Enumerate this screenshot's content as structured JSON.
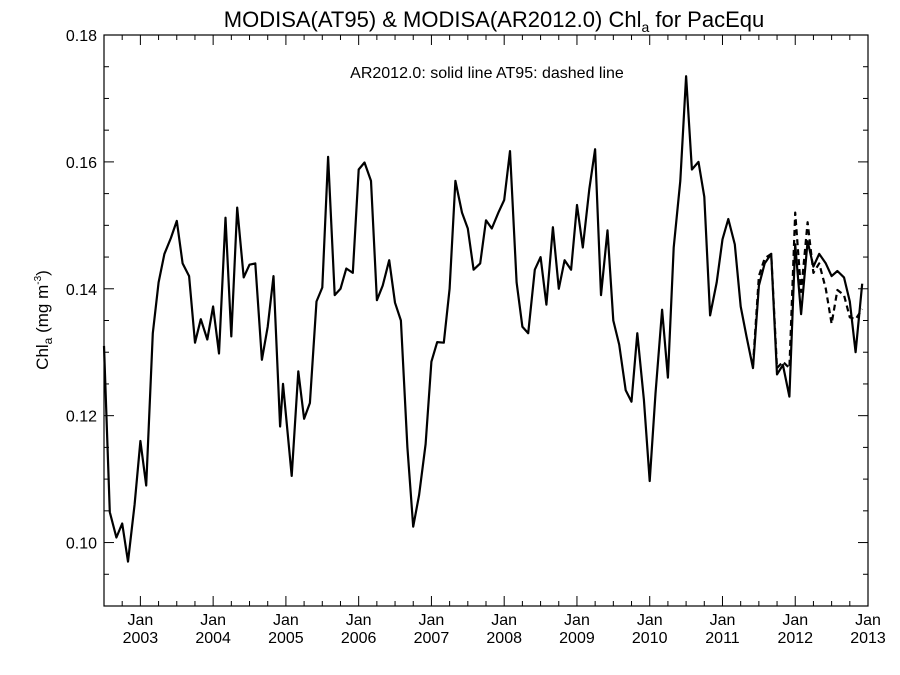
{
  "chart_data": {
    "type": "line",
    "title": {
      "main": "MODISA(AT95) & MODISA(AR2012.0)  Chl",
      "sub": "a",
      "tail": " for PacEqu"
    },
    "ylabel": {
      "pre": "Chl",
      "sub": "a",
      "mid": " (mg m",
      "sup": "-3",
      "post": ")"
    },
    "annotation": "AR2012.0: solid line   AT95: dashed line",
    "xlim": [
      2002.5,
      2013.0
    ],
    "ylim": [
      0.09,
      0.18
    ],
    "y_ticks": [
      "0.10",
      "0.12",
      "0.14",
      "0.16",
      "0.18"
    ],
    "y_tick_values": [
      0.1,
      0.12,
      0.14,
      0.16,
      0.18
    ],
    "x_ticks": [
      {
        "top": "Jan",
        "bottom": "2003",
        "x": 2003.0
      },
      {
        "top": "Jan",
        "bottom": "2004",
        "x": 2004.0
      },
      {
        "top": "Jan",
        "bottom": "2005",
        "x": 2005.0
      },
      {
        "top": "Jan",
        "bottom": "2006",
        "x": 2006.0
      },
      {
        "top": "Jan",
        "bottom": "2007",
        "x": 2007.0
      },
      {
        "top": "Jan",
        "bottom": "2008",
        "x": 2008.0
      },
      {
        "top": "Jan",
        "bottom": "2009",
        "x": 2009.0
      },
      {
        "top": "Jan",
        "bottom": "2010",
        "x": 2010.0
      },
      {
        "top": "Jan",
        "bottom": "2011",
        "x": 2011.0
      },
      {
        "top": "Jan",
        "bottom": "2012",
        "x": 2012.0
      },
      {
        "top": "Jan",
        "bottom": "2013",
        "x": 2013.0
      }
    ],
    "series": [
      {
        "name": "AR2012.0",
        "style": "solid",
        "color": "#000000",
        "points": [
          [
            2002.5,
            0.131
          ],
          [
            2002.58,
            0.1048
          ],
          [
            2002.67,
            0.1008
          ],
          [
            2002.75,
            0.103
          ],
          [
            2002.83,
            0.097
          ],
          [
            2002.92,
            0.106
          ],
          [
            2003.0,
            0.116
          ],
          [
            2003.08,
            0.109
          ],
          [
            2003.17,
            0.133
          ],
          [
            2003.25,
            0.141
          ],
          [
            2003.33,
            0.1455
          ],
          [
            2003.42,
            0.148
          ],
          [
            2003.5,
            0.1507
          ],
          [
            2003.58,
            0.144
          ],
          [
            2003.67,
            0.142
          ],
          [
            2003.75,
            0.1315
          ],
          [
            2003.83,
            0.1352
          ],
          [
            2003.92,
            0.132
          ],
          [
            2004.0,
            0.1372
          ],
          [
            2004.08,
            0.1298
          ],
          [
            2004.17,
            0.1512
          ],
          [
            2004.25,
            0.1325
          ],
          [
            2004.33,
            0.1528
          ],
          [
            2004.42,
            0.1418
          ],
          [
            2004.5,
            0.1438
          ],
          [
            2004.58,
            0.144
          ],
          [
            2004.67,
            0.1288
          ],
          [
            2004.75,
            0.134
          ],
          [
            2004.83,
            0.142
          ],
          [
            2004.92,
            0.1183
          ],
          [
            2004.96,
            0.125
          ],
          [
            2005.08,
            0.1105
          ],
          [
            2005.17,
            0.127
          ],
          [
            2005.25,
            0.1195
          ],
          [
            2005.33,
            0.122
          ],
          [
            2005.42,
            0.138
          ],
          [
            2005.5,
            0.1402
          ],
          [
            2005.58,
            0.1608
          ],
          [
            2005.67,
            0.139
          ],
          [
            2005.75,
            0.14
          ],
          [
            2005.83,
            0.1432
          ],
          [
            2005.92,
            0.1425
          ],
          [
            2006.0,
            0.1588
          ],
          [
            2006.08,
            0.1599
          ],
          [
            2006.17,
            0.157
          ],
          [
            2006.25,
            0.1382
          ],
          [
            2006.33,
            0.1405
          ],
          [
            2006.42,
            0.1445
          ],
          [
            2006.5,
            0.1378
          ],
          [
            2006.58,
            0.135
          ],
          [
            2006.67,
            0.115
          ],
          [
            2006.75,
            0.1025
          ],
          [
            2006.83,
            0.1075
          ],
          [
            2006.92,
            0.1155
          ],
          [
            2007.0,
            0.1285
          ],
          [
            2007.08,
            0.1316
          ],
          [
            2007.17,
            0.1315
          ],
          [
            2007.25,
            0.14
          ],
          [
            2007.33,
            0.157
          ],
          [
            2007.42,
            0.152
          ],
          [
            2007.5,
            0.1495
          ],
          [
            2007.58,
            0.143
          ],
          [
            2007.67,
            0.144
          ],
          [
            2007.75,
            0.1508
          ],
          [
            2007.83,
            0.1495
          ],
          [
            2007.92,
            0.152
          ],
          [
            2008.0,
            0.154
          ],
          [
            2008.08,
            0.1617
          ],
          [
            2008.17,
            0.141
          ],
          [
            2008.25,
            0.134
          ],
          [
            2008.33,
            0.133
          ],
          [
            2008.42,
            0.143
          ],
          [
            2008.5,
            0.145
          ],
          [
            2008.58,
            0.1375
          ],
          [
            2008.67,
            0.1497
          ],
          [
            2008.75,
            0.14
          ],
          [
            2008.83,
            0.1445
          ],
          [
            2008.92,
            0.143
          ],
          [
            2009.0,
            0.1532
          ],
          [
            2009.08,
            0.1465
          ],
          [
            2009.17,
            0.1557
          ],
          [
            2009.25,
            0.162
          ],
          [
            2009.33,
            0.139
          ],
          [
            2009.42,
            0.1492
          ],
          [
            2009.5,
            0.135
          ],
          [
            2009.58,
            0.1312
          ],
          [
            2009.67,
            0.124
          ],
          [
            2009.75,
            0.1222
          ],
          [
            2009.83,
            0.133
          ],
          [
            2009.92,
            0.1225
          ],
          [
            2010.0,
            0.1097
          ],
          [
            2010.08,
            0.1235
          ],
          [
            2010.17,
            0.1367
          ],
          [
            2010.25,
            0.126
          ],
          [
            2010.33,
            0.1465
          ],
          [
            2010.42,
            0.157
          ],
          [
            2010.5,
            0.1735
          ],
          [
            2010.58,
            0.1588
          ],
          [
            2010.67,
            0.16
          ],
          [
            2010.75,
            0.1545
          ],
          [
            2010.83,
            0.1358
          ],
          [
            2010.92,
            0.141
          ],
          [
            2011.0,
            0.1478
          ],
          [
            2011.08,
            0.151
          ],
          [
            2011.17,
            0.147
          ],
          [
            2011.25,
            0.1372
          ],
          [
            2011.33,
            0.1325
          ],
          [
            2011.42,
            0.1275
          ],
          [
            2011.5,
            0.1405
          ],
          [
            2011.58,
            0.144
          ],
          [
            2011.67,
            0.1455
          ],
          [
            2011.75,
            0.1265
          ],
          [
            2011.83,
            0.128
          ],
          [
            2011.92,
            0.123
          ],
          [
            2012.0,
            0.147
          ],
          [
            2012.08,
            0.136
          ],
          [
            2012.17,
            0.1475
          ],
          [
            2012.25,
            0.1435
          ],
          [
            2012.33,
            0.1455
          ],
          [
            2012.42,
            0.144
          ],
          [
            2012.5,
            0.142
          ],
          [
            2012.58,
            0.1428
          ],
          [
            2012.67,
            0.1418
          ],
          [
            2012.75,
            0.138
          ],
          [
            2012.83,
            0.13
          ],
          [
            2012.92,
            0.1408
          ]
        ]
      },
      {
        "name": "AT95",
        "style": "dashed",
        "color": "#000000",
        "points": [
          [
            2011.42,
            0.128
          ],
          [
            2011.5,
            0.142
          ],
          [
            2011.58,
            0.1448
          ],
          [
            2011.67,
            0.1455
          ],
          [
            2011.75,
            0.1275
          ],
          [
            2011.83,
            0.1285
          ],
          [
            2011.92,
            0.1275
          ],
          [
            2012.0,
            0.152
          ],
          [
            2012.08,
            0.1395
          ],
          [
            2012.17,
            0.1505
          ],
          [
            2012.25,
            0.1425
          ],
          [
            2012.33,
            0.144
          ],
          [
            2012.42,
            0.14
          ],
          [
            2012.5,
            0.1345
          ],
          [
            2012.58,
            0.1398
          ],
          [
            2012.67,
            0.139
          ],
          [
            2012.75,
            0.1355
          ],
          [
            2012.83,
            0.1352
          ],
          [
            2012.92,
            0.1368
          ]
        ]
      }
    ]
  }
}
